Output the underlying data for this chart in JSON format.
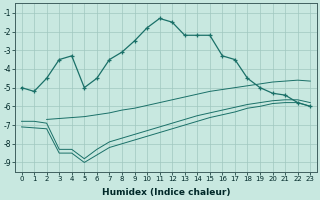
{
  "xlabel": "Humidex (Indice chaleur)",
  "background_color": "#c8e8e0",
  "grid_color": "#a0c8c0",
  "line_color": "#1a7068",
  "x_ticks": [
    0,
    1,
    2,
    3,
    4,
    5,
    6,
    7,
    8,
    9,
    10,
    11,
    12,
    13,
    14,
    15,
    16,
    17,
    18,
    19,
    20,
    21,
    22,
    23
  ],
  "y_ticks": [
    -1,
    -2,
    -3,
    -4,
    -5,
    -6,
    -7,
    -8,
    -9
  ],
  "ylim": [
    -9.5,
    -0.5
  ],
  "xlim": [
    -0.5,
    23.5
  ],
  "line1_x": [
    0,
    1,
    2,
    3,
    4,
    5,
    6,
    7,
    8,
    9,
    10,
    11,
    12,
    13,
    14,
    15,
    16,
    17,
    18,
    19,
    20,
    21,
    22,
    23
  ],
  "line1_y": [
    -5.0,
    -5.2,
    -4.5,
    -3.5,
    -3.3,
    -5.0,
    -4.5,
    -3.5,
    -3.1,
    -2.5,
    -1.8,
    -1.3,
    -1.5,
    -2.2,
    -2.2,
    -2.2,
    -3.3,
    -3.5,
    -4.5,
    -5.0,
    -5.3,
    -5.4,
    -5.8,
    -6.0
  ],
  "line2_x": [
    2,
    3,
    4,
    5,
    6,
    7,
    8,
    9,
    10,
    11,
    12,
    13,
    14,
    15,
    16,
    17,
    18,
    19,
    20,
    21,
    22,
    23
  ],
  "line2_y": [
    -6.7,
    -6.65,
    -6.6,
    -6.55,
    -6.45,
    -6.35,
    -6.2,
    -6.1,
    -5.95,
    -5.8,
    -5.65,
    -5.5,
    -5.35,
    -5.2,
    -5.1,
    -5.0,
    -4.9,
    -4.8,
    -4.7,
    -4.65,
    -4.6,
    -4.65
  ],
  "line3_x": [
    0,
    1,
    2,
    3,
    4,
    5,
    6,
    7,
    8,
    9,
    10,
    11,
    12,
    13,
    14,
    15,
    16,
    17,
    18,
    19,
    20,
    21,
    22,
    23
  ],
  "line3_y": [
    -6.8,
    -6.8,
    -6.9,
    -8.3,
    -8.3,
    -8.8,
    -8.3,
    -7.9,
    -7.7,
    -7.5,
    -7.3,
    -7.1,
    -6.9,
    -6.7,
    -6.5,
    -6.35,
    -6.2,
    -6.05,
    -5.9,
    -5.8,
    -5.7,
    -5.65,
    -5.65,
    -5.8
  ],
  "line4_x": [
    0,
    1,
    2,
    3,
    4,
    5,
    6,
    7,
    8,
    9,
    10,
    11,
    12,
    13,
    14,
    15,
    16,
    17,
    18,
    19,
    20,
    21,
    22,
    23
  ],
  "line4_y": [
    -7.1,
    -7.15,
    -7.2,
    -8.5,
    -8.5,
    -9.0,
    -8.6,
    -8.2,
    -8.0,
    -7.8,
    -7.6,
    -7.4,
    -7.2,
    -7.0,
    -6.8,
    -6.6,
    -6.45,
    -6.3,
    -6.1,
    -6.0,
    -5.85,
    -5.8,
    -5.8,
    -6.0
  ]
}
